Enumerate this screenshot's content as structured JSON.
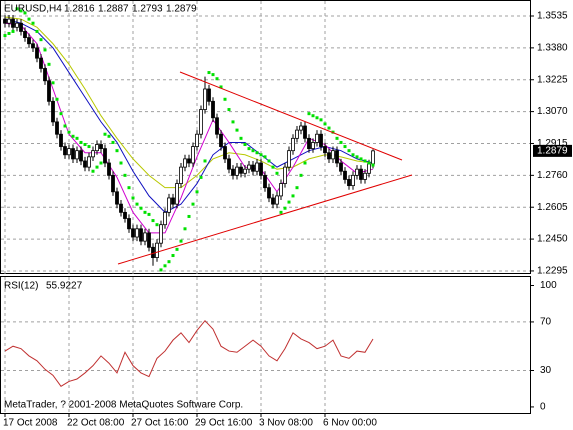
{
  "chart_data": [
    {
      "type": "candlestick",
      "symbol": "EURUSD,H4",
      "categories": [
        "17 Oct 2008",
        null,
        null,
        null,
        null,
        null,
        null,
        null,
        null,
        null,
        null,
        null,
        null,
        null,
        null,
        null,
        "22 Oct 08:00",
        null,
        null,
        null,
        null,
        null,
        null,
        null,
        null,
        null,
        null,
        null,
        null,
        null,
        null,
        null,
        "27 Oct 16:00",
        null,
        null,
        null,
        null,
        null,
        null,
        null,
        null,
        null,
        null,
        null,
        null,
        null,
        null,
        null,
        "29 Oct 16:00",
        null,
        null,
        null,
        null,
        null,
        null,
        null,
        null,
        null,
        null,
        null,
        null,
        null,
        null,
        null,
        "3 Nov 08:00",
        null,
        null,
        null,
        null,
        null,
        null,
        null,
        null,
        null,
        null,
        null,
        null,
        null,
        null,
        null,
        "6 Nov 00:00",
        null,
        null,
        null,
        null,
        null,
        null,
        null,
        null,
        null,
        null,
        null,
        null
      ],
      "open": [
        1.352,
        1.35,
        1.352,
        1.348,
        1.35,
        1.346,
        1.343,
        1.34,
        1.338,
        1.333,
        1.328,
        1.322,
        1.312,
        1.302,
        1.296,
        1.29,
        1.286,
        1.289,
        1.284,
        1.288,
        1.283,
        1.28,
        1.285,
        1.288,
        1.291,
        1.289,
        1.282,
        1.276,
        1.268,
        1.262,
        1.258,
        1.255,
        1.25,
        1.246,
        1.25,
        1.244,
        1.248,
        1.241,
        1.236,
        1.243,
        1.252,
        1.258,
        1.265,
        1.262,
        1.272,
        1.28,
        1.284,
        1.282,
        1.29,
        1.296,
        1.308,
        1.318,
        1.312,
        1.304,
        1.296,
        1.29,
        1.284,
        1.279,
        1.276,
        1.28,
        1.277,
        1.279,
        1.281,
        1.278,
        1.282,
        1.276,
        1.27,
        1.265,
        1.262,
        1.266,
        1.272,
        1.28,
        1.288,
        1.294,
        1.298,
        1.3,
        1.294,
        1.289,
        1.292,
        1.296,
        1.29,
        1.287,
        1.284,
        1.288,
        1.282,
        1.278,
        1.274,
        1.271,
        1.276,
        1.279,
        1.274,
        1.277,
        1.2816
      ],
      "high": [
        1.354,
        1.354,
        1.354,
        1.352,
        1.352,
        1.348,
        1.345,
        1.342,
        1.34,
        1.335,
        1.33,
        1.324,
        1.314,
        1.304,
        1.298,
        1.292,
        1.291,
        1.291,
        1.29,
        1.29,
        1.285,
        1.287,
        1.29,
        1.293,
        1.293,
        1.291,
        1.284,
        1.278,
        1.27,
        1.264,
        1.26,
        1.257,
        1.252,
        1.252,
        1.252,
        1.25,
        1.25,
        1.243,
        1.245,
        1.254,
        1.26,
        1.267,
        1.267,
        1.274,
        1.282,
        1.286,
        1.286,
        1.292,
        1.298,
        1.31,
        1.324,
        1.32,
        1.314,
        1.306,
        1.298,
        1.292,
        1.286,
        1.281,
        1.282,
        1.282,
        1.281,
        1.283,
        1.283,
        1.284,
        1.284,
        1.278,
        1.272,
        1.267,
        1.268,
        1.274,
        1.282,
        1.29,
        1.296,
        1.3,
        1.302,
        1.302,
        1.296,
        1.294,
        1.298,
        1.298,
        1.292,
        1.289,
        1.29,
        1.29,
        1.284,
        1.28,
        1.276,
        1.278,
        1.281,
        1.281,
        1.279,
        1.2836,
        1.2887
      ],
      "low": [
        1.348,
        1.348,
        1.346,
        1.346,
        1.344,
        1.341,
        1.338,
        1.336,
        1.331,
        1.326,
        1.32,
        1.31,
        1.3,
        1.294,
        1.288,
        1.284,
        1.284,
        1.282,
        1.282,
        1.281,
        1.278,
        1.278,
        1.283,
        1.286,
        1.287,
        1.28,
        1.274,
        1.266,
        1.26,
        1.256,
        1.253,
        1.248,
        1.244,
        1.244,
        1.242,
        1.242,
        1.239,
        1.232,
        1.234,
        1.241,
        1.25,
        1.256,
        1.26,
        1.26,
        1.27,
        1.278,
        1.28,
        1.28,
        1.288,
        1.294,
        1.306,
        1.31,
        1.302,
        1.294,
        1.288,
        1.282,
        1.277,
        1.274,
        1.274,
        1.275,
        1.275,
        1.277,
        1.276,
        1.276,
        1.274,
        1.268,
        1.263,
        1.26,
        1.26,
        1.264,
        1.27,
        1.278,
        1.286,
        1.292,
        1.296,
        1.292,
        1.287,
        1.287,
        1.29,
        1.288,
        1.285,
        1.282,
        1.282,
        1.28,
        1.276,
        1.272,
        1.269,
        1.269,
        1.274,
        1.272,
        1.272,
        1.275,
        1.2793
      ],
      "close": [
        1.35,
        1.352,
        1.348,
        1.35,
        1.346,
        1.343,
        1.34,
        1.338,
        1.333,
        1.328,
        1.322,
        1.312,
        1.302,
        1.296,
        1.29,
        1.286,
        1.289,
        1.284,
        1.288,
        1.283,
        1.28,
        1.285,
        1.288,
        1.291,
        1.289,
        1.282,
        1.276,
        1.268,
        1.262,
        1.258,
        1.255,
        1.25,
        1.246,
        1.25,
        1.244,
        1.248,
        1.241,
        1.236,
        1.243,
        1.252,
        1.258,
        1.265,
        1.262,
        1.272,
        1.28,
        1.284,
        1.282,
        1.29,
        1.296,
        1.308,
        1.318,
        1.312,
        1.304,
        1.296,
        1.29,
        1.284,
        1.279,
        1.276,
        1.28,
        1.277,
        1.279,
        1.281,
        1.278,
        1.282,
        1.276,
        1.27,
        1.265,
        1.262,
        1.266,
        1.272,
        1.28,
        1.288,
        1.294,
        1.298,
        1.3,
        1.294,
        1.289,
        1.292,
        1.296,
        1.29,
        1.287,
        1.284,
        1.288,
        1.282,
        1.278,
        1.274,
        1.271,
        1.276,
        1.279,
        1.274,
        1.277,
        1.2816,
        1.2879
      ],
      "up_color": "#ffffff",
      "down_color": "#000000",
      "sar_color": "#00e000",
      "sar_values": [
        1.344,
        1.345,
        1.346,
        1.357,
        1.356,
        1.355,
        1.352,
        1.35,
        1.346,
        1.342,
        1.337,
        1.33,
        1.321,
        1.313,
        1.306,
        1.3,
        1.297,
        1.295,
        1.294,
        1.292,
        1.291,
        1.29,
        1.278,
        1.28,
        1.282,
        1.296,
        1.295,
        1.292,
        1.288,
        1.282,
        1.276,
        1.27,
        1.265,
        1.262,
        1.26,
        1.258,
        1.257,
        1.254,
        1.252,
        1.23,
        1.232,
        1.234,
        1.237,
        1.24,
        1.244,
        1.25,
        1.256,
        1.262,
        1.268,
        1.275,
        1.283,
        1.326,
        1.325,
        1.323,
        1.319,
        1.313,
        1.308,
        1.302,
        1.298,
        1.294,
        1.291,
        1.289,
        1.288,
        1.287,
        1.286,
        1.285,
        1.283,
        1.28,
        1.277,
        1.258,
        1.26,
        1.263,
        1.266,
        1.27,
        1.276,
        1.282,
        1.306,
        1.305,
        1.304,
        1.303,
        1.301,
        1.299,
        1.297,
        1.294,
        1.292,
        1.29,
        1.288,
        1.286,
        1.285,
        1.284,
        1.283,
        1.282,
        1.281
      ],
      "moving_averages": [
        {
          "color": "#b8c800",
          "x": [
            0,
            4,
            8,
            12,
            16,
            20,
            24,
            28,
            32,
            36,
            40,
            44,
            48,
            52,
            56,
            60,
            64,
            68,
            72,
            76,
            80,
            84,
            88,
            92
          ],
          "values": [
            1.353,
            1.352,
            1.348,
            1.34,
            1.33,
            1.318,
            1.305,
            1.294,
            1.284,
            1.276,
            1.27,
            1.27,
            1.276,
            1.284,
            1.287,
            1.286,
            1.283,
            1.279,
            1.28,
            1.284,
            1.286,
            1.285,
            1.283,
            1.282
          ]
        },
        {
          "color": "#1010c0",
          "x": [
            0,
            4,
            8,
            12,
            16,
            20,
            24,
            28,
            32,
            36,
            40,
            44,
            48,
            52,
            56,
            60,
            64,
            68,
            72,
            76,
            80,
            84,
            88,
            92
          ],
          "values": [
            1.352,
            1.35,
            1.346,
            1.338,
            1.326,
            1.314,
            1.302,
            1.292,
            1.278,
            1.266,
            1.258,
            1.262,
            1.272,
            1.286,
            1.292,
            1.292,
            1.286,
            1.28,
            1.284,
            1.288,
            1.29,
            1.288,
            1.284,
            1.282
          ]
        },
        {
          "color": "#d000d0",
          "x": [
            0,
            4,
            8,
            12,
            16,
            20,
            24,
            28,
            32,
            36,
            40,
            44,
            48,
            52,
            56,
            60,
            64,
            68,
            72,
            76,
            80,
            84,
            88,
            92
          ],
          "values": [
            1.35,
            1.349,
            1.34,
            1.318,
            1.296,
            1.287,
            1.287,
            1.275,
            1.258,
            1.248,
            1.248,
            1.265,
            1.285,
            1.303,
            1.292,
            1.28,
            1.279,
            1.268,
            1.28,
            1.294,
            1.291,
            1.283,
            1.277,
            1.279
          ]
        }
      ],
      "ylim": [
        1.2285,
        1.3608
      ],
      "yticks": [
        1.3535,
        {
          "value": 1.338,
          "label": "1.3380"
        },
        1.3225,
        {
          "value": 1.307,
          "label": "1.3070"
        },
        1.2915,
        {
          "value": 1.276,
          "label": "1.2760"
        },
        1.2605,
        {
          "value": 1.245,
          "label": "1.2450"
        },
        1.2295
      ],
      "grid": true
    },
    {
      "type": "line",
      "title": "RSI(12)",
      "color": "#c03030",
      "x": [
        0,
        2,
        4,
        6,
        8,
        10,
        12,
        14,
        16,
        18,
        20,
        22,
        24,
        26,
        28,
        30,
        32,
        34,
        36,
        38,
        40,
        42,
        44,
        46,
        48,
        50,
        52,
        54,
        56,
        58,
        60,
        62,
        64,
        66,
        68,
        70,
        72,
        74,
        76,
        78,
        80,
        82,
        84,
        86,
        88,
        90,
        92
      ],
      "values": [
        46,
        50,
        48,
        42,
        38,
        31,
        26,
        17,
        21,
        23,
        28,
        34,
        42,
        36,
        28,
        45,
        34,
        28,
        25,
        40,
        46,
        55,
        61,
        53,
        63,
        71,
        64,
        50,
        46,
        45,
        50,
        55,
        50,
        42,
        38,
        48,
        61,
        56,
        53,
        48,
        50,
        55,
        42,
        40,
        46,
        45,
        55.9227
      ],
      "ylim": [
        -5,
        107
      ],
      "yticks": [
        100,
        70,
        30,
        0
      ],
      "grid_ticks": [
        70,
        30
      ],
      "annotation": "MetaTrader, ? 2001-2008 MetaQuotes Software Corp."
    }
  ]
}
